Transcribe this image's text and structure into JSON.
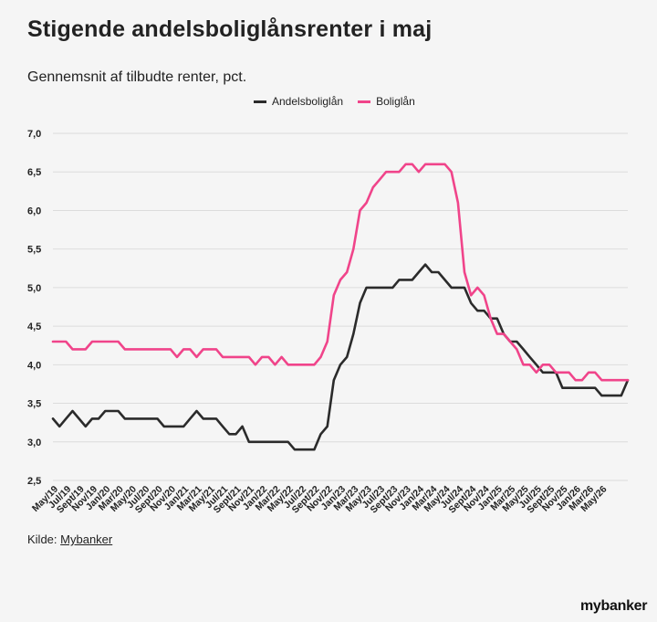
{
  "header": {
    "title": "Stigende andelsboliglånsrenter i maj",
    "subtitle": "Gennemsnit af tilbudte renter, pct."
  },
  "footer": {
    "source_label": "Kilde:",
    "source_link": "Mybanker",
    "logo": "mybanker"
  },
  "chart_data": {
    "type": "line",
    "legend_position": "top-center",
    "grid": true,
    "ylim": [
      2.5,
      7.0
    ],
    "yticks": [
      "2,5",
      "3,0",
      "3,5",
      "4,0",
      "4,5",
      "5,0",
      "5,5",
      "6,0",
      "6,5",
      "7,0"
    ],
    "x_tick_labels": [
      "May/19",
      "Jul/19",
      "Sept/19",
      "Nov/19",
      "Jan/20",
      "Mar/20",
      "May/20",
      "Jul/20",
      "Sept/20",
      "Nov/20",
      "Jan/21",
      "Mar/21",
      "May/21",
      "Jul/21",
      "Sept/21",
      "Nov/21",
      "Jan/22",
      "Mar/22",
      "May/22",
      "Jul/22",
      "Sept/22",
      "Nov/22",
      "Jan/23",
      "Mar/23",
      "May/23",
      "Jul/23",
      "Sept/23",
      "Nov/23",
      "Jan/24",
      "Mar/24",
      "May/24",
      "Jul/24",
      "Sept/24",
      "Nov/24",
      "Jan/25",
      "Mar/25",
      "May/25",
      "Jul/25",
      "Sept/25",
      "Nov/25",
      "Jan/26",
      "Mar/26",
      "May/26"
    ],
    "series": [
      {
        "name": "Andelsboliglån",
        "color": "#2b2b2b",
        "values": [
          3.3,
          3.2,
          3.3,
          3.4,
          3.3,
          3.2,
          3.3,
          3.3,
          3.4,
          3.4,
          3.4,
          3.3,
          3.3,
          3.3,
          3.3,
          3.3,
          3.3,
          3.2,
          3.2,
          3.2,
          3.2,
          3.3,
          3.4,
          3.3,
          3.3,
          3.3,
          3.2,
          3.1,
          3.1,
          3.2,
          3.0,
          3.0,
          3.0,
          3.0,
          3.0,
          3.0,
          3.0,
          2.9,
          2.9,
          2.9,
          2.9,
          3.1,
          3.2,
          3.8,
          4.0,
          4.1,
          4.4,
          4.8,
          5.0,
          5.0,
          5.0,
          5.0,
          5.0,
          5.1,
          5.1,
          5.1,
          5.2,
          5.3,
          5.2,
          5.2,
          5.1,
          5.0,
          5.0,
          5.0,
          4.8,
          4.7,
          4.7,
          4.6,
          4.6,
          4.4,
          4.3,
          4.3,
          4.2,
          4.1,
          4.0,
          3.9,
          3.9,
          3.9,
          3.7,
          3.7,
          3.7,
          3.7,
          3.7,
          3.7,
          3.6,
          3.6,
          3.6,
          3.6,
          3.8
        ]
      },
      {
        "name": "Boliglån",
        "color": "#f0448a",
        "values": [
          4.3,
          4.3,
          4.3,
          4.2,
          4.2,
          4.2,
          4.3,
          4.3,
          4.3,
          4.3,
          4.3,
          4.2,
          4.2,
          4.2,
          4.2,
          4.2,
          4.2,
          4.2,
          4.2,
          4.1,
          4.2,
          4.2,
          4.1,
          4.2,
          4.2,
          4.2,
          4.1,
          4.1,
          4.1,
          4.1,
          4.1,
          4.0,
          4.1,
          4.1,
          4.0,
          4.1,
          4.0,
          4.0,
          4.0,
          4.0,
          4.0,
          4.1,
          4.3,
          4.9,
          5.1,
          5.2,
          5.5,
          6.0,
          6.1,
          6.3,
          6.4,
          6.5,
          6.5,
          6.5,
          6.6,
          6.6,
          6.5,
          6.6,
          6.6,
          6.6,
          6.6,
          6.5,
          6.1,
          5.2,
          4.9,
          5.0,
          4.9,
          4.6,
          4.4,
          4.4,
          4.3,
          4.2,
          4.0,
          4.0,
          3.9,
          4.0,
          4.0,
          3.9,
          3.9,
          3.9,
          3.8,
          3.8,
          3.9,
          3.9,
          3.8,
          3.8,
          3.8,
          3.8,
          3.8
        ]
      }
    ]
  }
}
